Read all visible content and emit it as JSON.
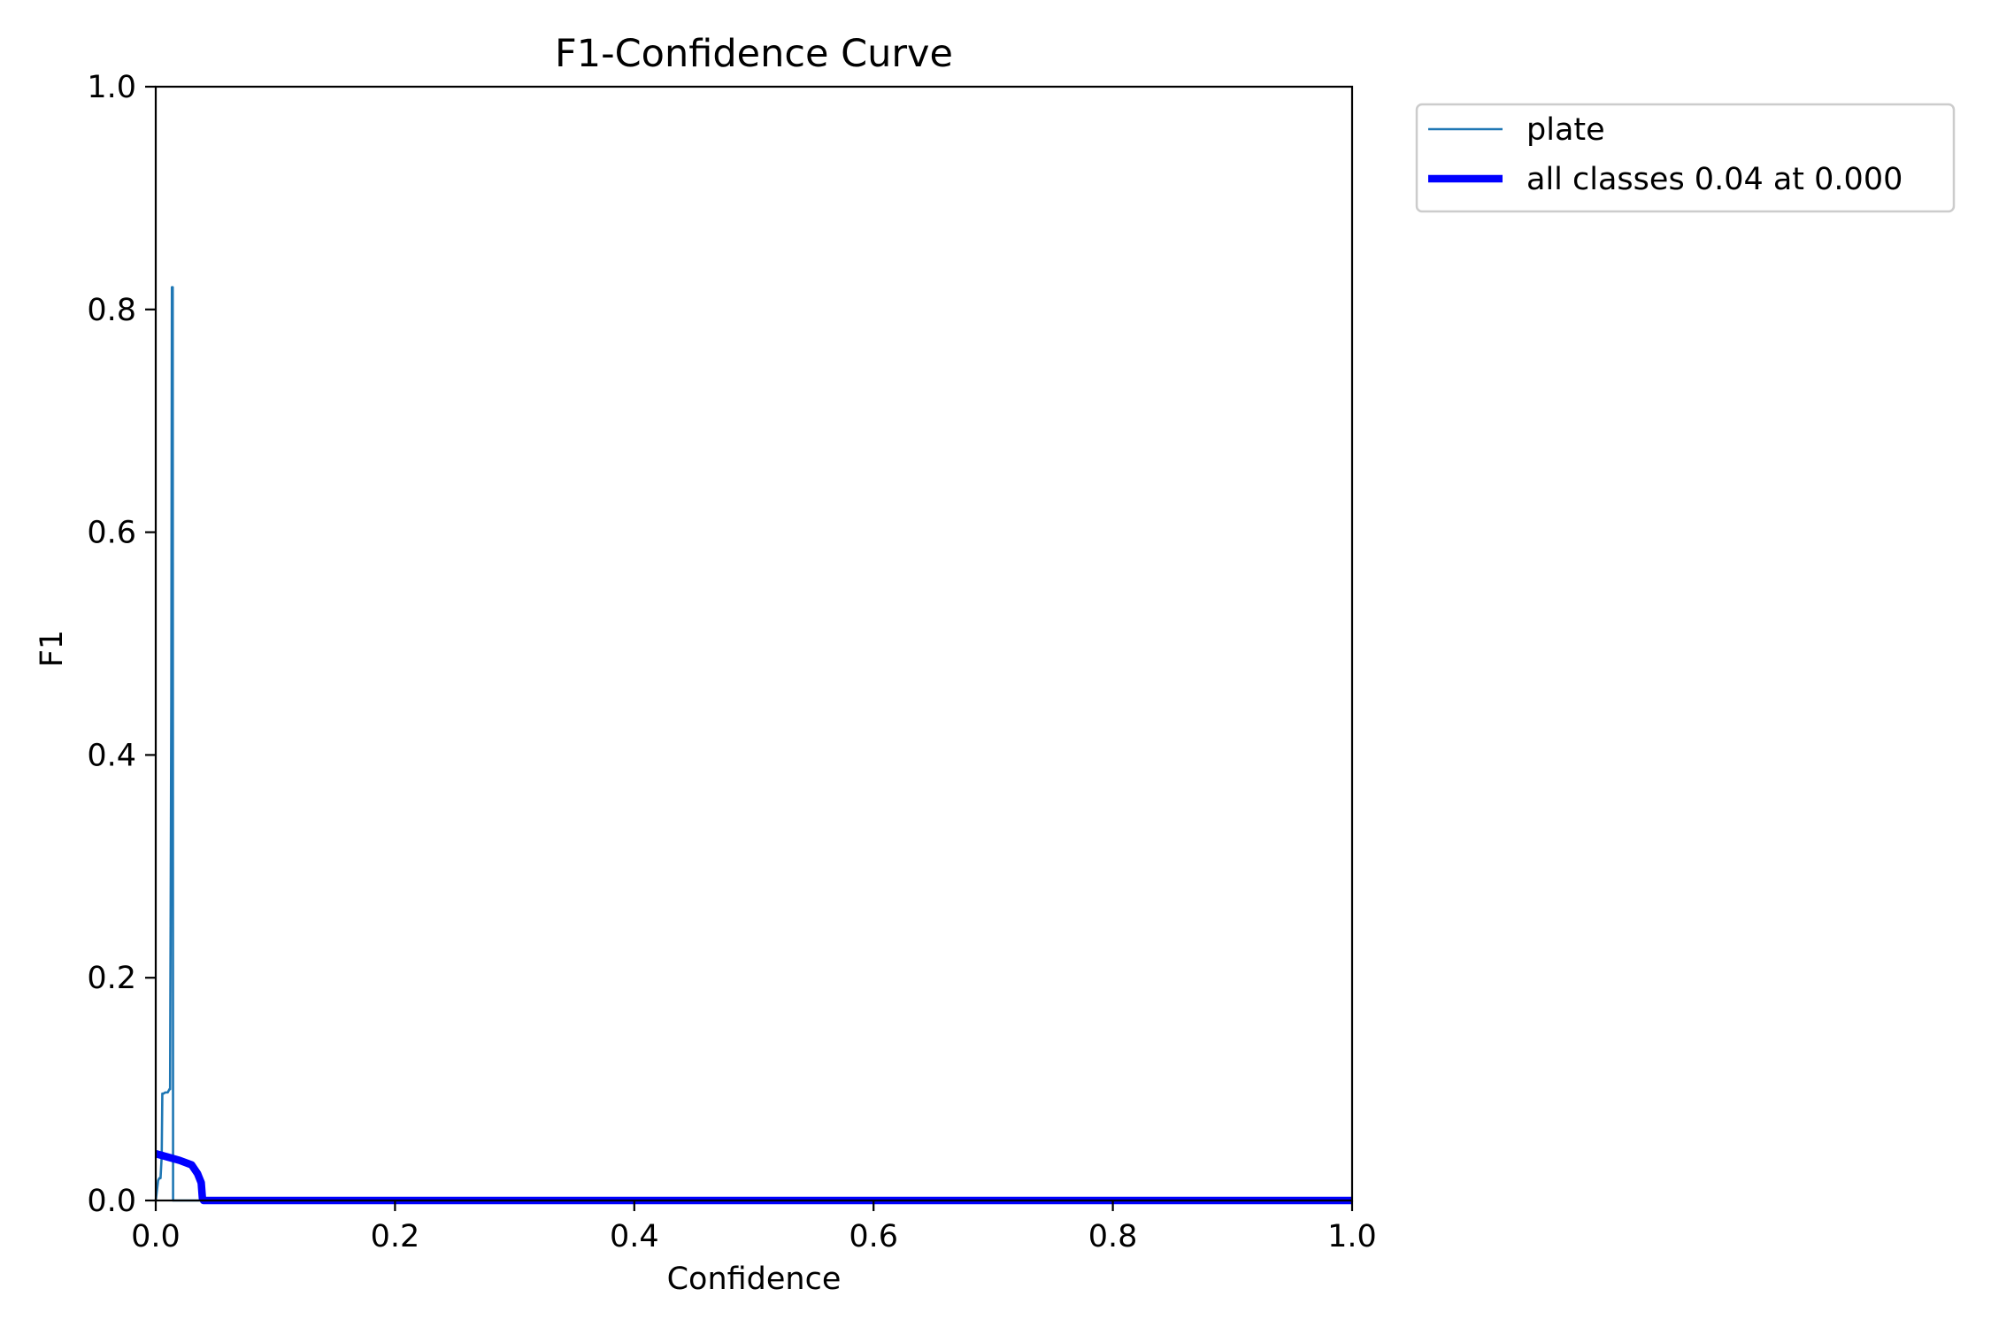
{
  "chart_data": {
    "type": "line",
    "title": "F1-Confidence Curve",
    "xlabel": "Confidence",
    "ylabel": "F1",
    "xlim": [
      0.0,
      1.0
    ],
    "ylim": [
      0.0,
      1.0
    ],
    "xticks": [
      "0.0",
      "0.2",
      "0.4",
      "0.6",
      "0.8",
      "1.0"
    ],
    "yticks": [
      "0.0",
      "0.2",
      "0.4",
      "0.6",
      "0.8",
      "1.0"
    ],
    "grid": false,
    "legend_position": "outside-top-right",
    "series": [
      {
        "name": "plate",
        "color": "#1f77b4",
        "style": "thin",
        "x": [
          0.0,
          0.002,
          0.003,
          0.004,
          0.005,
          0.0055,
          0.0065,
          0.008,
          0.01,
          0.0115,
          0.012,
          0.013,
          0.0135,
          0.0142,
          0.0145,
          0.1,
          0.3,
          0.5,
          0.7,
          0.9,
          1.0
        ],
        "y": [
          0.0,
          0.018,
          0.02,
          0.02,
          0.04,
          0.096,
          0.096,
          0.097,
          0.097,
          0.1,
          0.1,
          0.45,
          0.82,
          0.82,
          0.0,
          0.0,
          0.0,
          0.0,
          0.0,
          0.0,
          0.0
        ]
      },
      {
        "name": "all classes 0.04 at 0.000",
        "color": "#0000ff",
        "style": "thick",
        "x": [
          0.0,
          0.01,
          0.02,
          0.03,
          0.035,
          0.038,
          0.039,
          0.04,
          0.2,
          0.4,
          0.6,
          0.8,
          1.0
        ],
        "y": [
          0.042,
          0.039,
          0.036,
          0.032,
          0.024,
          0.016,
          0.002,
          0.0,
          0.0,
          0.0,
          0.0,
          0.0,
          0.0
        ]
      }
    ]
  }
}
